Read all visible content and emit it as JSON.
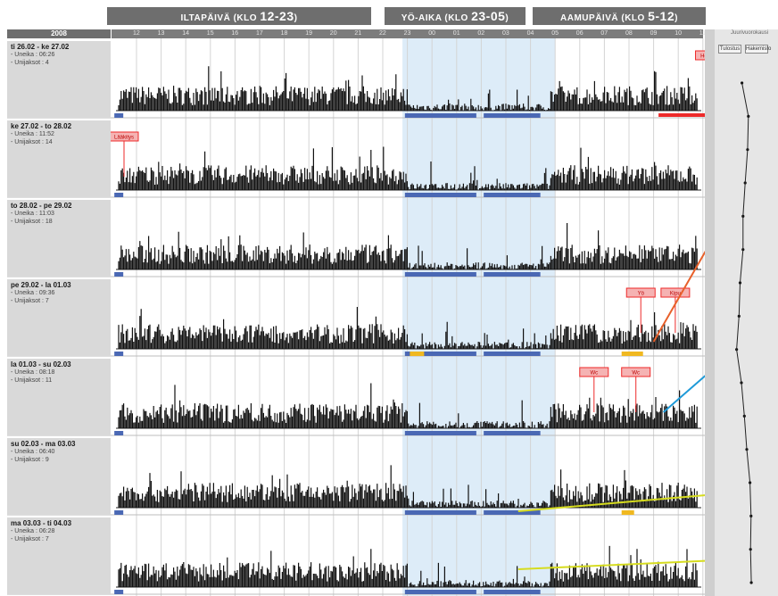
{
  "header": {
    "banners": [
      {
        "prefix": "ILTAPÄIVÄ (KLO ",
        "value": "12-23",
        "suffix": ")"
      },
      {
        "prefix": "YÖ-AIKA (KLO ",
        "value": "23-05",
        "suffix": ")"
      },
      {
        "prefix": "AAMUPÄIVÄ (KLO ",
        "value": "5-12",
        "suffix": ")"
      }
    ],
    "year": "2008"
  },
  "hour_labels": [
    "12",
    "13",
    "14",
    "15",
    "16",
    "17",
    "18",
    "19",
    "20",
    "21",
    "22",
    "23",
    "00",
    "01",
    "02",
    "03",
    "04",
    "05",
    "06",
    "07",
    "08",
    "09",
    "10",
    "11"
  ],
  "colors": {
    "banner": "#6e6e6e",
    "night_shade": "#ddecf8",
    "activity": "#111111",
    "sleep_bar": "#4a68b4",
    "event_bar": "#f0b820",
    "marker": "#ee2a2a",
    "arrow_orange": "#e8602a",
    "arrow_blue": "#1e9ad8",
    "arrow_yellow": "#d6dc1e"
  },
  "days": [
    {
      "date": "ti 26.02 - ke 27.02",
      "sleep": "- Uneika : 06:26",
      "wakeups": "- Unijaksot : 4"
    },
    {
      "date": "ke 27.02 - to 28.02",
      "sleep": "- Uneika : 11:52",
      "wakeups": "- Unijaksot : 14"
    },
    {
      "date": "to 28.02 - pe 29.02",
      "sleep": "- Uneika : 11:03",
      "wakeups": "- Unijaksot : 18"
    },
    {
      "date": "pe 29.02 - la 01.03",
      "sleep": "- Uneika : 09:36",
      "wakeups": "- Unijaksot : 7"
    },
    {
      "date": "la 01.03 - su 02.03",
      "sleep": "- Uneika : 08:18",
      "wakeups": "- Unijaksot : 11"
    },
    {
      "date": "su 02.03 - ma 03.03",
      "sleep": "- Uneika : 06:40",
      "wakeups": "- Unijaksot : 9"
    },
    {
      "date": "ma 03.03 - ti 04.03",
      "sleep": "- Uneika : 06:28",
      "wakeups": "- Unijaksot : 7"
    }
  ],
  "markers": {
    "tablets": "Tabletit",
    "medication": "Lääkitys",
    "night": "Yö",
    "pain": "Kipu",
    "toilet": "Wc",
    "waking": "Herätys"
  },
  "sidepanel": {
    "title": "Juurivuorokausi",
    "buttons": [
      "Tulostus",
      "Hakemisto"
    ],
    "trend_values": [
      0.62,
      0.86,
      0.83,
      0.74,
      0.66,
      0.66,
      0.55,
      0.51,
      0.42,
      0.6,
      0.71,
      0.8,
      0.92,
      0.96,
      0.94,
      0.97
    ]
  }
}
